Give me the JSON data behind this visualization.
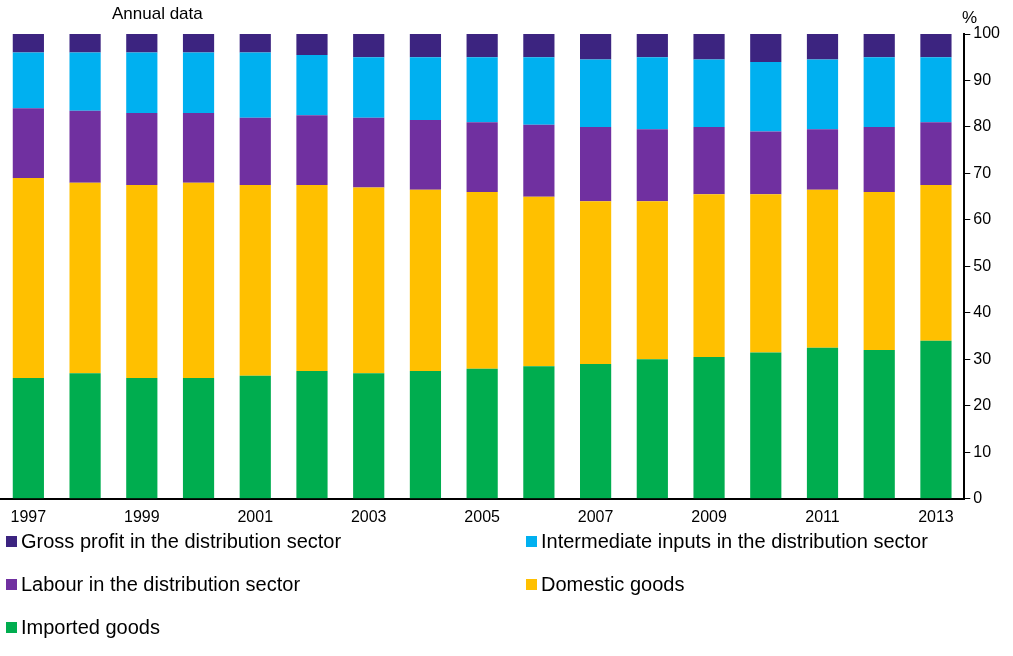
{
  "chart_data": {
    "type": "bar",
    "subtitle": "Annual data",
    "ylabel": "%",
    "stacked": true,
    "categories": [
      "1997",
      null,
      "1999",
      null,
      "2001",
      null,
      "2003",
      null,
      "2005",
      null,
      "2007",
      null,
      "2009",
      null,
      "2011",
      null,
      "2013"
    ],
    "ylim": [
      0,
      100
    ],
    "yticks": [
      0,
      10,
      20,
      30,
      40,
      50,
      60,
      70,
      80,
      90,
      100
    ],
    "grid": false,
    "legend": "bottom",
    "series": [
      {
        "name": "Imported goods",
        "color": "#00ad4f",
        "values": [
          26,
          27,
          26,
          26,
          26.5,
          27.5,
          27,
          27.5,
          28,
          28.5,
          29,
          30,
          30.5,
          31.5,
          32.5,
          32,
          34
        ]
      },
      {
        "name": "Domestic goods",
        "color": "#ffc000",
        "values": [
          43,
          41,
          41.5,
          42,
          41,
          40,
          40,
          39,
          38,
          36.5,
          35,
          34,
          35,
          34,
          34,
          34,
          33.5
        ]
      },
      {
        "name": "Labour in the distribution sector",
        "color": "#7030a0",
        "values": [
          15,
          15.5,
          15.5,
          15,
          14.5,
          15,
          15,
          15,
          15,
          15.5,
          16,
          15.5,
          14.5,
          13.5,
          13,
          14,
          13.5
        ]
      },
      {
        "name": "Intermediate inputs in the distribution sector",
        "color": "#00b0f0",
        "values": [
          12,
          12.5,
          13,
          13,
          14,
          13,
          13,
          13.5,
          14,
          14.5,
          14.5,
          15.5,
          14.5,
          15,
          15,
          15,
          14
        ]
      },
      {
        "name": "Gross profit in the distribution sector",
        "color": "#3c2480",
        "values": [
          4,
          4,
          4,
          4,
          4,
          4.5,
          5,
          5,
          5,
          5,
          5.5,
          5,
          5.5,
          6,
          5.5,
          5,
          5
        ]
      }
    ]
  }
}
